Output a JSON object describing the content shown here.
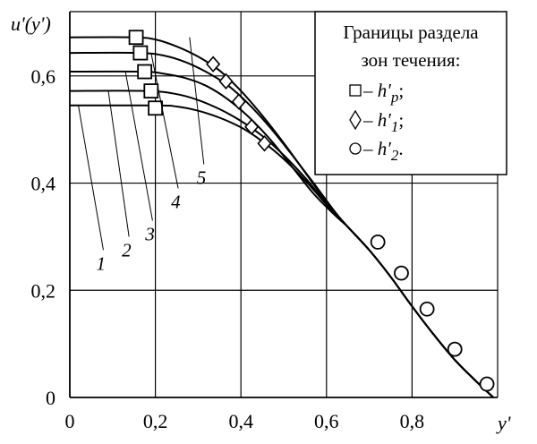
{
  "chart_data": {
    "type": "line",
    "title": "",
    "xlabel": "y'",
    "ylabel": "u'(y')",
    "xlim": [
      0,
      1.0
    ],
    "ylim": [
      0,
      0.72
    ],
    "grid": true,
    "x_ticks": [
      {
        "value": 0,
        "label": "0"
      },
      {
        "value": 0.2,
        "label": "0,2"
      },
      {
        "value": 0.4,
        "label": "0,4"
      },
      {
        "value": 0.6,
        "label": "0,6"
      },
      {
        "value": 0.8,
        "label": "0,8"
      }
    ],
    "y_ticks": [
      {
        "value": 0,
        "label": "0"
      },
      {
        "value": 0.2,
        "label": "0,2"
      },
      {
        "value": 0.4,
        "label": "0,4"
      },
      {
        "value": 0.6,
        "label": "0,6"
      }
    ],
    "series": [
      {
        "name": "1",
        "points": [
          [
            0,
            0.545
          ],
          [
            0.2,
            0.545
          ],
          [
            0.25,
            0.543
          ],
          [
            0.3,
            0.535
          ],
          [
            0.35,
            0.522
          ],
          [
            0.4,
            0.504
          ],
          [
            0.45,
            0.478
          ],
          [
            0.5,
            0.445
          ],
          [
            0.55,
            0.405
          ],
          [
            0.6,
            0.36
          ],
          [
            0.65,
            0.318
          ],
          [
            0.7,
            0.275
          ],
          [
            0.75,
            0.225
          ],
          [
            0.8,
            0.17
          ],
          [
            0.85,
            0.118
          ],
          [
            0.9,
            0.07
          ],
          [
            0.95,
            0.03
          ],
          [
            0.99,
            0
          ]
        ],
        "marker_hp": [
          0.2,
          0.54
        ],
        "marker_h1": [
          0.455,
          0.474
        ]
      },
      {
        "name": "2",
        "points": [
          [
            0,
            0.572
          ],
          [
            0.18,
            0.572
          ],
          [
            0.25,
            0.566
          ],
          [
            0.3,
            0.555
          ],
          [
            0.35,
            0.538
          ],
          [
            0.4,
            0.516
          ],
          [
            0.45,
            0.488
          ],
          [
            0.5,
            0.452
          ],
          [
            0.55,
            0.41
          ],
          [
            0.6,
            0.362
          ],
          [
            0.65,
            0.318
          ],
          [
            0.7,
            0.275
          ],
          [
            0.75,
            0.225
          ],
          [
            0.8,
            0.17
          ],
          [
            0.85,
            0.118
          ],
          [
            0.9,
            0.07
          ],
          [
            0.95,
            0.03
          ],
          [
            0.99,
            0
          ]
        ],
        "marker_hp": [
          0.19,
          0.572
        ],
        "marker_h1": [
          0.425,
          0.505
        ]
      },
      {
        "name": "3",
        "points": [
          [
            0,
            0.608
          ],
          [
            0.17,
            0.608
          ],
          [
            0.22,
            0.604
          ],
          [
            0.27,
            0.596
          ],
          [
            0.32,
            0.581
          ],
          [
            0.37,
            0.556
          ],
          [
            0.42,
            0.522
          ],
          [
            0.47,
            0.48
          ],
          [
            0.52,
            0.43
          ],
          [
            0.57,
            0.38
          ],
          [
            0.62,
            0.34
          ],
          [
            0.65,
            0.318
          ],
          [
            0.7,
            0.275
          ],
          [
            0.75,
            0.225
          ],
          [
            0.8,
            0.17
          ],
          [
            0.85,
            0.118
          ],
          [
            0.9,
            0.07
          ],
          [
            0.95,
            0.03
          ],
          [
            0.99,
            0
          ]
        ],
        "marker_hp": [
          0.175,
          0.608
        ],
        "marker_h1": [
          0.395,
          0.552
        ]
      },
      {
        "name": "4",
        "points": [
          [
            0,
            0.643
          ],
          [
            0.16,
            0.643
          ],
          [
            0.22,
            0.638
          ],
          [
            0.27,
            0.626
          ],
          [
            0.32,
            0.607
          ],
          [
            0.37,
            0.582
          ],
          [
            0.42,
            0.546
          ],
          [
            0.47,
            0.502
          ],
          [
            0.52,
            0.452
          ],
          [
            0.57,
            0.4
          ],
          [
            0.62,
            0.346
          ],
          [
            0.65,
            0.318
          ],
          [
            0.7,
            0.275
          ],
          [
            0.75,
            0.225
          ],
          [
            0.8,
            0.17
          ],
          [
            0.85,
            0.118
          ],
          [
            0.9,
            0.07
          ],
          [
            0.95,
            0.03
          ],
          [
            0.99,
            0
          ]
        ],
        "marker_hp": [
          0.165,
          0.643
        ],
        "marker_h1": [
          0.365,
          0.59
        ]
      },
      {
        "name": "5",
        "points": [
          [
            0,
            0.672
          ],
          [
            0.15,
            0.672
          ],
          [
            0.2,
            0.668
          ],
          [
            0.25,
            0.655
          ],
          [
            0.3,
            0.636
          ],
          [
            0.35,
            0.61
          ],
          [
            0.4,
            0.572
          ],
          [
            0.45,
            0.526
          ],
          [
            0.5,
            0.475
          ],
          [
            0.55,
            0.42
          ],
          [
            0.6,
            0.365
          ],
          [
            0.65,
            0.318
          ],
          [
            0.7,
            0.275
          ],
          [
            0.75,
            0.225
          ],
          [
            0.8,
            0.17
          ],
          [
            0.85,
            0.118
          ],
          [
            0.9,
            0.07
          ],
          [
            0.95,
            0.03
          ],
          [
            0.99,
            0
          ]
        ],
        "marker_hp": [
          0.155,
          0.672
        ],
        "marker_h1": [
          0.335,
          0.622
        ]
      }
    ],
    "marker_h2": [
      [
        0.72,
        0.29
      ],
      [
        0.775,
        0.232
      ],
      [
        0.835,
        0.165
      ],
      [
        0.9,
        0.09
      ],
      [
        0.975,
        0.025
      ]
    ],
    "legend": {
      "placement": "top-right",
      "title_line1": "Границы раздела",
      "title_line2": "зон течения:",
      "items": [
        {
          "symbol": "square",
          "glyph": "□",
          "dash": " – ",
          "label": "h′",
          "sub": "p",
          "end": ";"
        },
        {
          "symbol": "diamond",
          "glyph": "◊",
          "dash": " – ",
          "label": "h′",
          "sub": "1",
          "end": ";"
        },
        {
          "symbol": "circle",
          "glyph": "○",
          "dash": " – ",
          "label": "h′",
          "sub": "2",
          "end": "."
        }
      ]
    }
  }
}
